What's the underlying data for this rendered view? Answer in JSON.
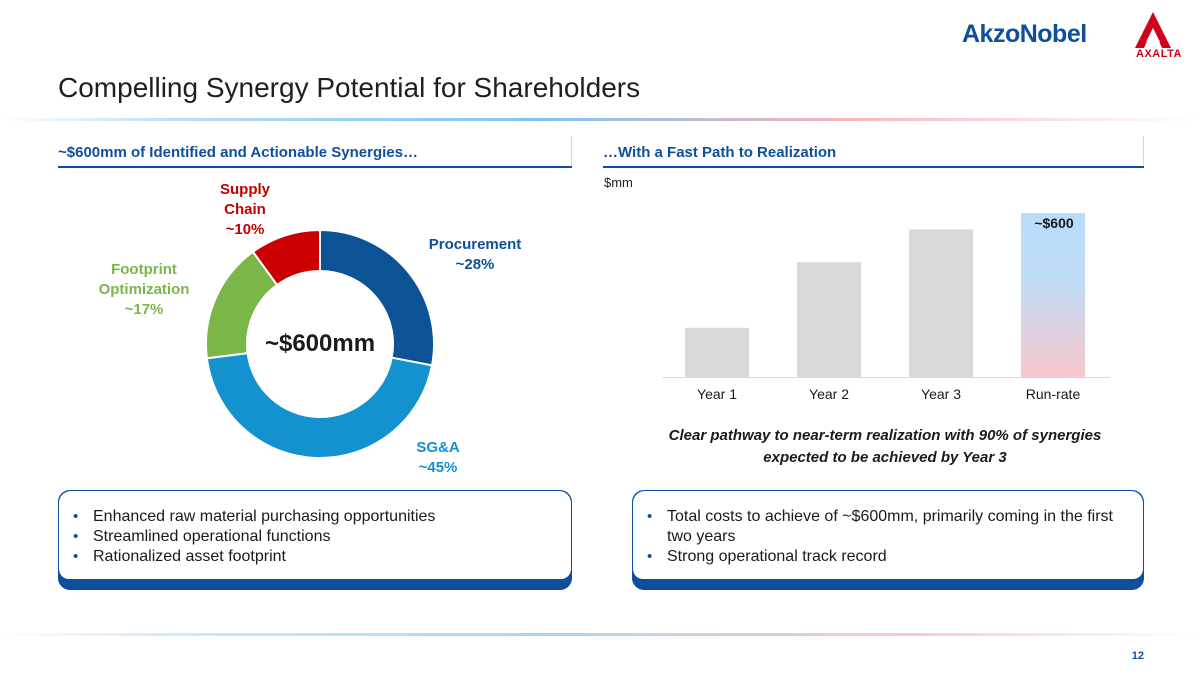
{
  "branding": {
    "akzo_logo_text": "AkzoNobel",
    "axalta_logo_text": "AXALTA",
    "akzo_color": "#0d4f9c",
    "axalta_color": "#d0021b"
  },
  "title": "Compelling Synergy Potential for Shareholders",
  "left_section": {
    "header": "~$600mm of Identified and Actionable Synergies…",
    "bullets": [
      "Enhanced raw material purchasing opportunities",
      "Streamlined operational functions",
      "Rationalized asset footprint"
    ]
  },
  "right_section": {
    "header": "…With a Fast Path to Realization",
    "unit_label": "$mm",
    "takeaway": "Clear pathway to near-term realization with 90% of synergies expected to be achieved by Year 3",
    "bullets": [
      "Total costs to achieve of ~$600mm, primarily coming in the first two years",
      "Strong operational track record"
    ]
  },
  "chart_data": [
    {
      "type": "pie",
      "title": "~$600mm of Identified and Actionable Synergies…",
      "center_label": "~$600mm",
      "categories": [
        "Procurement",
        "SG&A",
        "Footprint Optimization",
        "Supply Chain"
      ],
      "values": [
        28,
        45,
        17,
        10
      ],
      "value_labels": [
        "~28%",
        "~45%",
        "~17%",
        "~10%"
      ],
      "label_lines": [
        [
          "Procurement",
          "~28%"
        ],
        [
          "SG&A",
          "~45%"
        ],
        [
          "Footprint",
          "Optimization",
          "~17%"
        ],
        [
          "Supply",
          "Chain",
          "~10%"
        ]
      ],
      "colors": [
        "#0b5394",
        "#1491cf",
        "#7ab648",
        "#cc0000"
      ]
    },
    {
      "type": "bar",
      "title": "…With a Fast Path to Realization",
      "ylabel": "$mm",
      "categories": [
        "Year 1",
        "Year 2",
        "Year 3",
        "Run-rate"
      ],
      "values": [
        180,
        420,
        540,
        600
      ],
      "data_labels": [
        "",
        "",
        "",
        "~$600"
      ],
      "ylim": [
        0,
        650
      ],
      "grid": false,
      "colors": [
        "#d9d9d9",
        "#d9d9d9",
        "#d9d9d9",
        "gradient"
      ]
    }
  ],
  "page_number": "12"
}
